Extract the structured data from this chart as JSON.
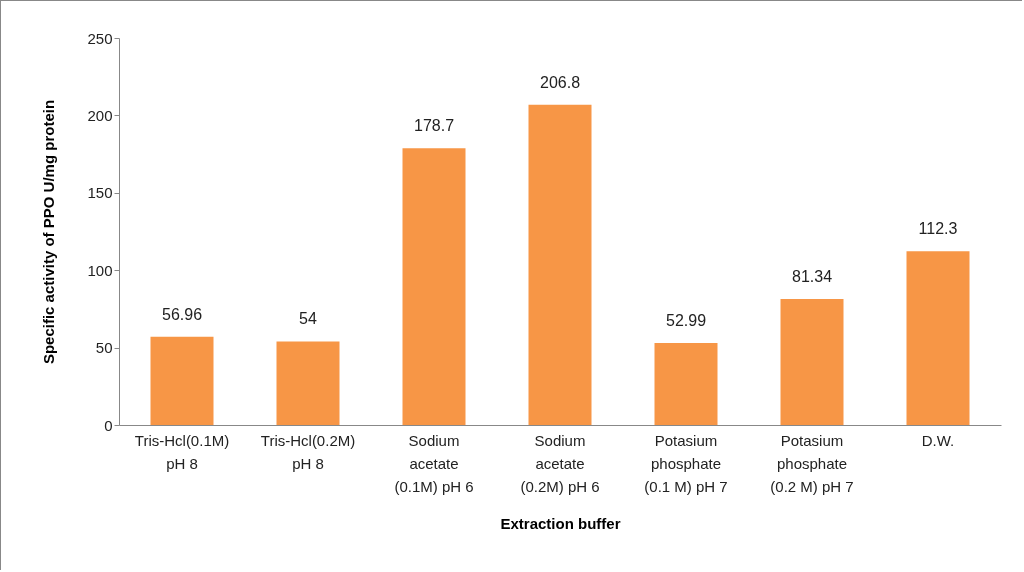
{
  "chart_data": {
    "type": "bar",
    "xlabel": "Extraction buffer",
    "ylabel": "Specific activity of PPO U/mg protein",
    "categories": [
      "Tris-Hcl(0.1M)\npH 8",
      "Tris-Hcl(0.2M)\npH 8",
      "Sodium\nacetate\n(0.1M) pH 6",
      "Sodium\nacetate\n(0.2M) pH 6",
      "Potasium\nphosphate\n(0.1 M) pH 7",
      "Potasium\nphosphate\n(0.2 M) pH 7",
      "D.W."
    ],
    "values": [
      56.96,
      54,
      178.7,
      206.8,
      52.99,
      81.34,
      112.3
    ],
    "color": "#f79646",
    "ylim": [
      0,
      250
    ],
    "yticks": [
      0,
      50,
      100,
      150,
      200,
      250
    ],
    "data_labels": true,
    "grid": false
  }
}
